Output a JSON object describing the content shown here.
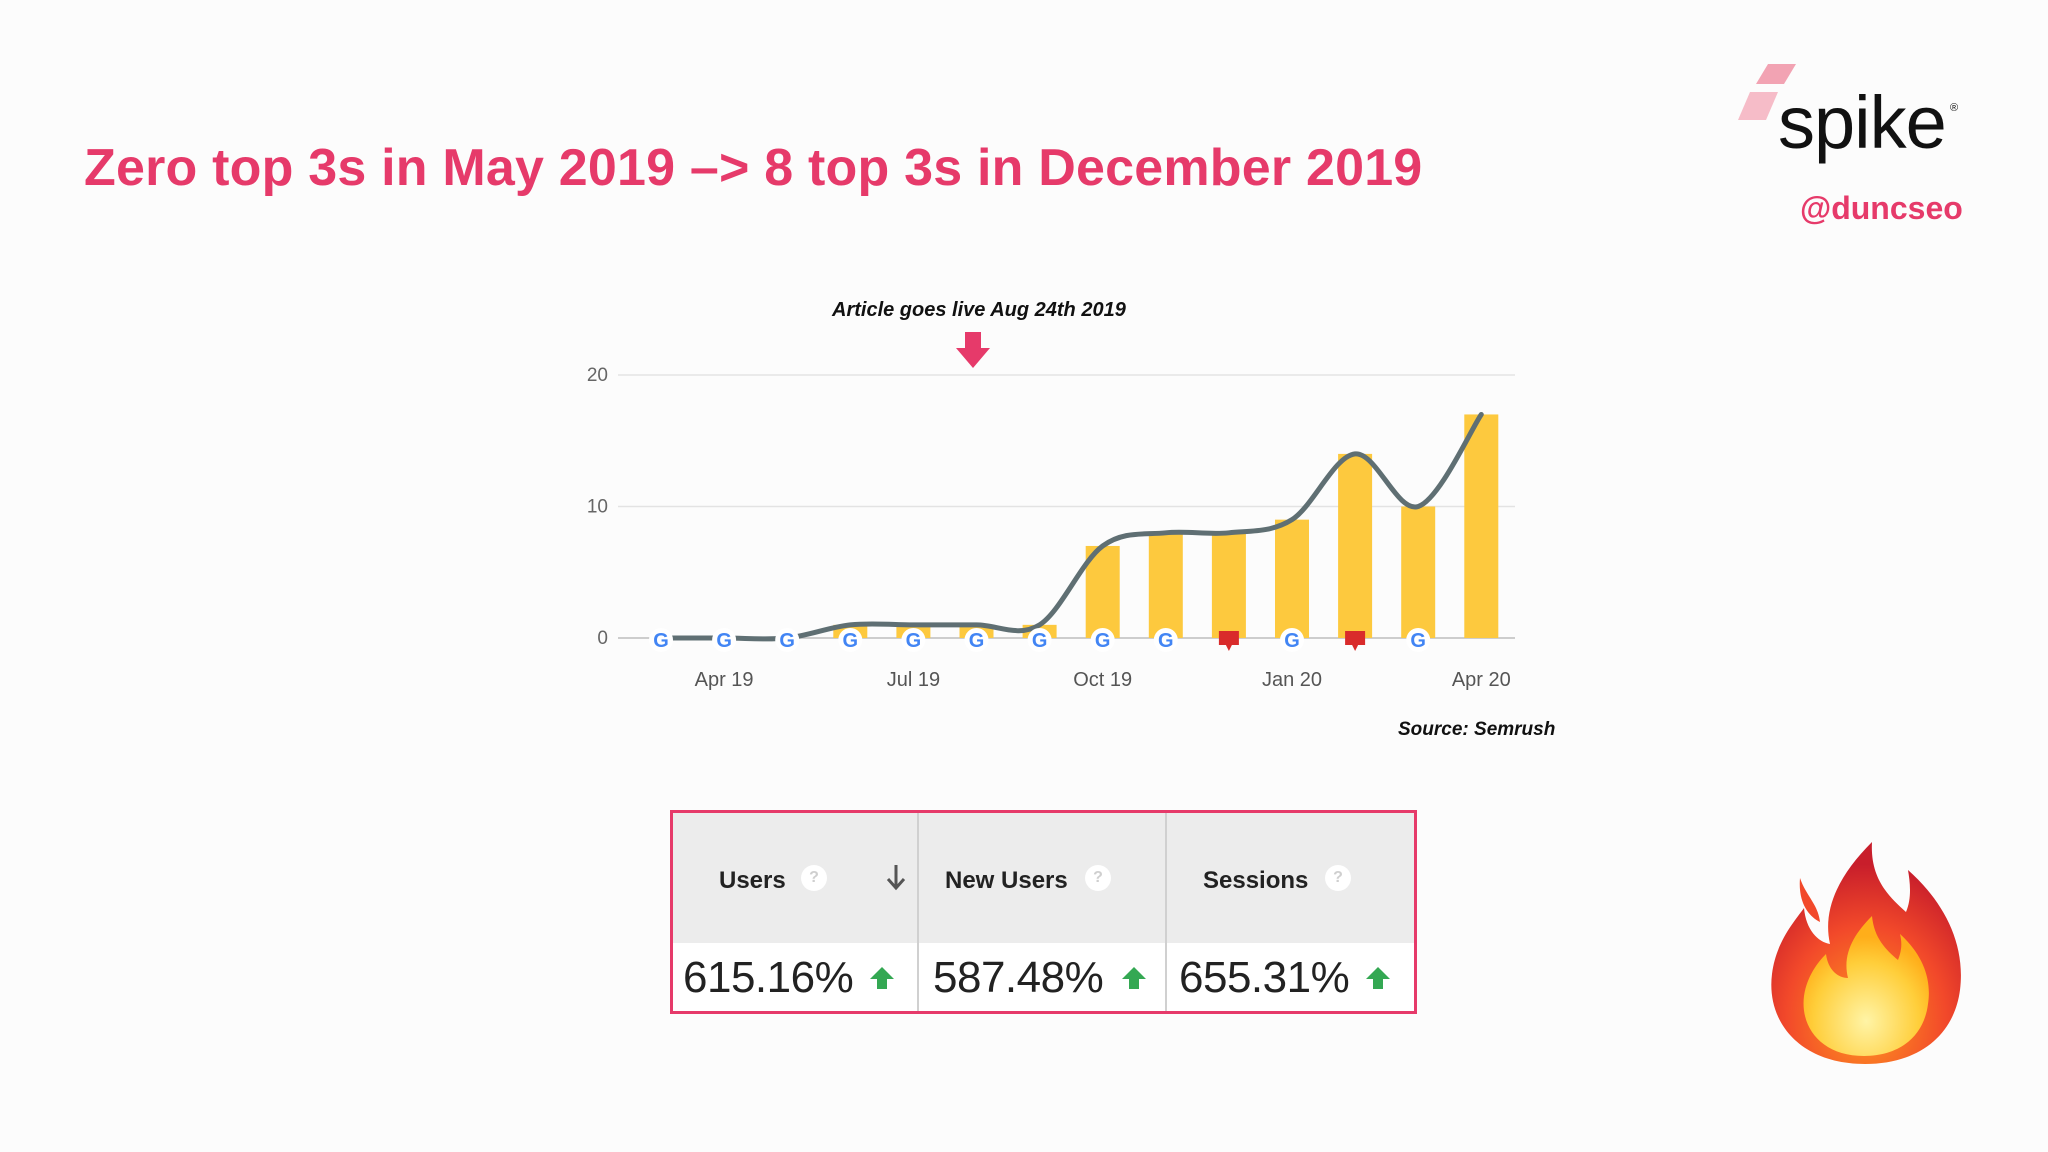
{
  "slide": {
    "title": "Zero top 3s in May 2019 –> 8 top 3s in December 2019",
    "handle": "@duncseo",
    "logo_text": "spike",
    "logo_reg": "®",
    "annotation": "Article goes live Aug 24th 2019",
    "source": "Source: Semrush",
    "accent_color": "#e63a6a",
    "decoration_icon": "fire-emoji"
  },
  "chart_data": {
    "type": "bar",
    "x": [
      "2019-03",
      "2019-04",
      "2019-05",
      "2019-06",
      "2019-07",
      "2019-08",
      "2019-09",
      "2019-10",
      "2019-11",
      "2019-12",
      "2020-01",
      "2020-02",
      "2020-03",
      "2020-04"
    ],
    "xtick_labels": [
      "Apr 19",
      "Jul 19",
      "Oct 19",
      "Jan 20",
      "Apr 20"
    ],
    "xtick_positions": [
      "2019-04",
      "2019-07",
      "2019-10",
      "2020-01",
      "2020-04"
    ],
    "series": [
      {
        "kind": "bar",
        "color": "#fdc93e",
        "values": [
          0,
          0,
          0,
          1,
          1,
          1,
          1,
          7,
          8,
          8,
          9,
          14,
          10,
          17
        ]
      },
      {
        "kind": "line",
        "color": "#5f6f73",
        "values": [
          0,
          0,
          0,
          1,
          1,
          1,
          1,
          7,
          8,
          8,
          9,
          14,
          10,
          17
        ]
      }
    ],
    "markers": [
      "google",
      "google",
      "google",
      "google",
      "google",
      "google",
      "google",
      "google",
      "google",
      "note",
      "google",
      "note",
      "google",
      "none"
    ],
    "yticks": [
      0,
      10,
      20
    ],
    "ylim": [
      0,
      20
    ],
    "grid": true,
    "legend": "none"
  },
  "metrics": [
    {
      "label": "Users",
      "value": "615.16%",
      "sorted": true
    },
    {
      "label": "New Users",
      "value": "587.48%",
      "sorted": false
    },
    {
      "label": "Sessions",
      "value": "655.31%",
      "sorted": false
    }
  ],
  "metrics_help_glyph": "?"
}
